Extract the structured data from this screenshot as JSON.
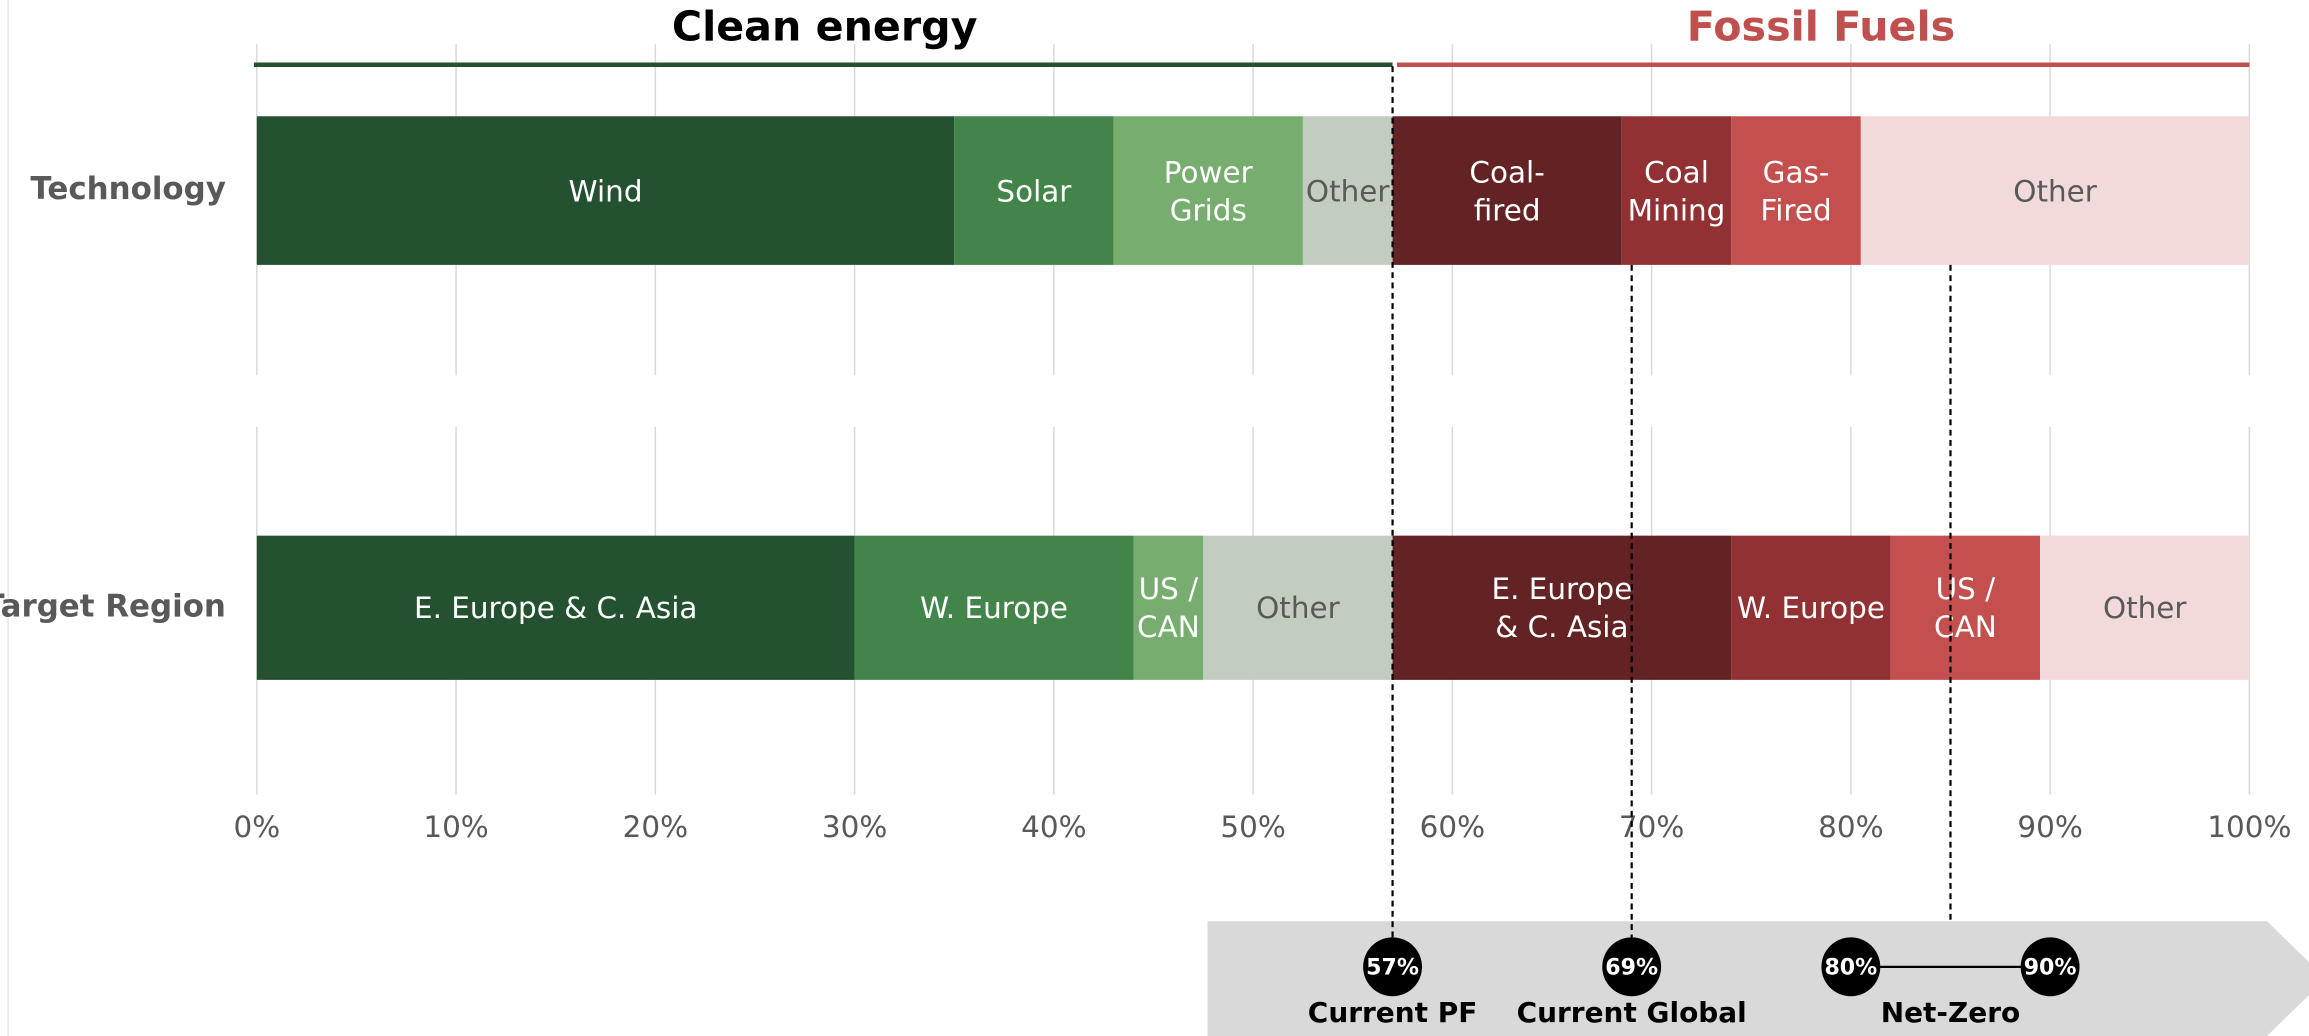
{
  "chart_data": {
    "type": "stacked-bar-horizontal",
    "groups": [
      {
        "name": "Clean energy",
        "range": [
          0,
          57
        ],
        "color": "#245130",
        "text_color": "#000000"
      },
      {
        "name": "Fossil Fuels",
        "range": [
          57,
          100
        ],
        "color": "#c0504d",
        "text_color": "#c0504d"
      }
    ],
    "bars": [
      {
        "label": "Technology",
        "segments": [
          {
            "name": "Wind",
            "value": 35,
            "color": "#245130"
          },
          {
            "name": "Solar",
            "value": 8,
            "color": "#43844a"
          },
          {
            "name": "Power\nGrids",
            "value": 9.5,
            "color": "#77ad6f"
          },
          {
            "name": "Other",
            "value": 4.5,
            "color": "#c2cdc0"
          },
          {
            "name": "Coal-\nfired",
            "value": 11.5,
            "color": "#632224"
          },
          {
            "name": "Coal\nMining",
            "value": 5.5,
            "color": "#923133"
          },
          {
            "name": "Gas-\nFired",
            "value": 6.5,
            "color": "#c44f4f"
          },
          {
            "name": "Other",
            "value": 19.5,
            "color": "#f2dadb"
          }
        ]
      },
      {
        "label": "Target Region",
        "segments": [
          {
            "name": "E. Europe & C. Asia",
            "value": 30,
            "color": "#245130"
          },
          {
            "name": "W. Europe",
            "value": 14,
            "color": "#43844a"
          },
          {
            "name": "US /\nCAN",
            "value": 3.5,
            "color": "#77ad6f"
          },
          {
            "name": "Other",
            "value": 9.5,
            "color": "#c2cdc0"
          },
          {
            "name": "E. Europe\n& C. Asia",
            "value": 17,
            "color": "#632224"
          },
          {
            "name": "W. Europe",
            "value": 8,
            "color": "#923133"
          },
          {
            "name": "US /\nCAN",
            "value": 7.5,
            "color": "#c44f4f"
          },
          {
            "name": "Other",
            "value": 10.5,
            "color": "#f2dadb"
          }
        ]
      }
    ],
    "xlim": [
      0,
      100
    ],
    "xticks": [
      {
        "value": 0,
        "label": "0%"
      },
      {
        "value": 10,
        "label": "10%"
      },
      {
        "value": 20,
        "label": "20%"
      },
      {
        "value": 30,
        "label": "30%"
      },
      {
        "value": 40,
        "label": "40%"
      },
      {
        "value": 50,
        "label": "50%"
      },
      {
        "value": 60,
        "label": "60%"
      },
      {
        "value": 70,
        "label": "70%"
      },
      {
        "value": 80,
        "label": "80%"
      },
      {
        "value": 90,
        "label": "90%"
      },
      {
        "value": 100,
        "label": "100%"
      }
    ],
    "grid": true,
    "markers": [
      {
        "name": "Current PF",
        "values": [
          57
        ],
        "value_labels": [
          "57%"
        ]
      },
      {
        "name": "Current Global",
        "values": [
          69
        ],
        "value_labels": [
          "69%"
        ]
      },
      {
        "name": "Net-Zero",
        "values": [
          80,
          90
        ],
        "value_labels": [
          "80%",
          "90%"
        ]
      }
    ]
  }
}
